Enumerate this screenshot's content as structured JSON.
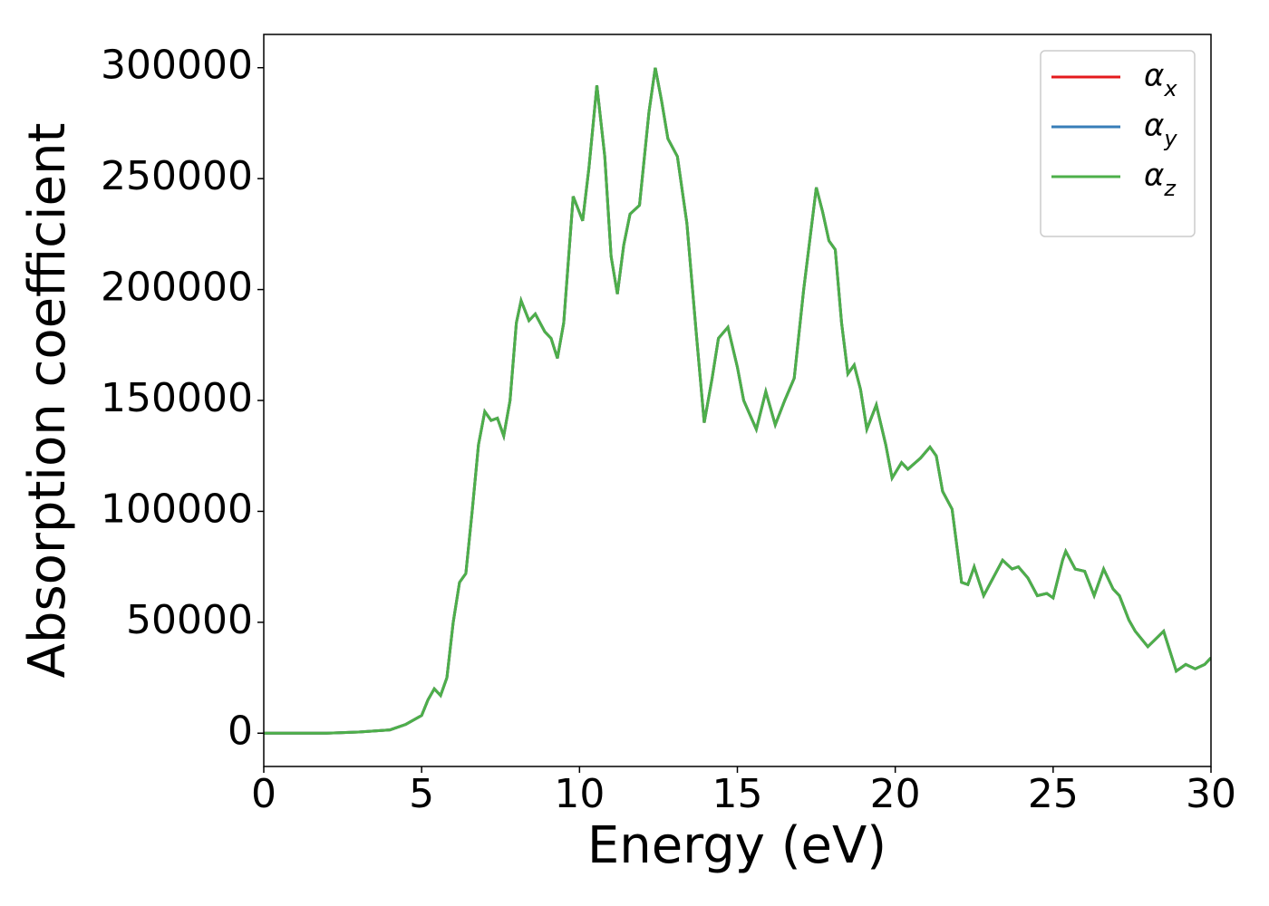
{
  "chart_data": {
    "type": "line",
    "xlabel": "Energy (eV)",
    "ylabel": "Absorption coefficient",
    "x": [
      0,
      2,
      3,
      4,
      4.5,
      5,
      5.2,
      5.4,
      5.6,
      5.8,
      6.0,
      6.2,
      6.4,
      6.6,
      6.8,
      7.0,
      7.2,
      7.4,
      7.6,
      7.8,
      8.0,
      8.15,
      8.4,
      8.6,
      8.9,
      9.1,
      9.3,
      9.5,
      9.8,
      10.1,
      10.3,
      10.55,
      10.8,
      11.0,
      11.2,
      11.4,
      11.6,
      11.9,
      12.2,
      12.4,
      12.6,
      12.8,
      13.1,
      13.4,
      13.7,
      13.95,
      14.2,
      14.4,
      14.7,
      15.0,
      15.2,
      15.6,
      15.9,
      16.2,
      16.5,
      16.8,
      17.1,
      17.5,
      17.7,
      17.9,
      18.1,
      18.3,
      18.5,
      18.7,
      18.9,
      19.1,
      19.4,
      19.7,
      19.9,
      20.2,
      20.4,
      20.8,
      21.1,
      21.3,
      21.5,
      21.8,
      22.1,
      22.3,
      22.5,
      22.8,
      23.1,
      23.4,
      23.7,
      23.9,
      24.2,
      24.5,
      24.8,
      25.0,
      25.3,
      25.4,
      25.7,
      26.0,
      26.3,
      26.6,
      26.9,
      27.1,
      27.4,
      27.6,
      28.0,
      28.5,
      28.9,
      29.2,
      29.5,
      29.8,
      30
    ],
    "series": [
      {
        "name": "α_x",
        "color": "#e41a1c",
        "values": [
          0,
          0,
          500,
          1500,
          4000,
          8000,
          15000,
          20000,
          17000,
          25000,
          50000,
          68000,
          72000,
          100000,
          130000,
          145000,
          141000,
          142000,
          134000,
          150000,
          185000,
          195000,
          186000,
          189000,
          181000,
          178000,
          169000,
          185000,
          242000,
          231000,
          255000,
          292000,
          260000,
          215000,
          198000,
          220000,
          234000,
          238000,
          280000,
          300000,
          285000,
          268000,
          260000,
          230000,
          180000,
          140000,
          160000,
          178000,
          183000,
          165000,
          150000,
          137000,
          154000,
          139000,
          150000,
          160000,
          200000,
          246000,
          235000,
          222000,
          218000,
          185000,
          162000,
          166000,
          155000,
          137000,
          148000,
          130000,
          115000,
          122000,
          119000,
          124000,
          129000,
          125000,
          109000,
          101000,
          68000,
          67000,
          75000,
          62000,
          70000,
          78000,
          74000,
          75000,
          70000,
          62000,
          63000,
          61000,
          78000,
          82000,
          74000,
          73000,
          62000,
          74000,
          65000,
          62000,
          51000,
          46000,
          39000,
          46000,
          28000,
          31000,
          29000,
          31000,
          34000
        ]
      },
      {
        "name": "α_y",
        "color": "#377eb8",
        "values": [
          0,
          0,
          500,
          1500,
          4000,
          8000,
          15000,
          20000,
          17000,
          25000,
          50000,
          68000,
          72000,
          100000,
          130000,
          145000,
          141000,
          142000,
          134000,
          150000,
          185000,
          195000,
          186000,
          189000,
          181000,
          178000,
          169000,
          185000,
          242000,
          231000,
          255000,
          292000,
          260000,
          215000,
          198000,
          220000,
          234000,
          238000,
          280000,
          300000,
          285000,
          268000,
          260000,
          230000,
          180000,
          140000,
          160000,
          178000,
          183000,
          165000,
          150000,
          137000,
          154000,
          139000,
          150000,
          160000,
          200000,
          246000,
          235000,
          222000,
          218000,
          185000,
          162000,
          166000,
          155000,
          137000,
          148000,
          130000,
          115000,
          122000,
          119000,
          124000,
          129000,
          125000,
          109000,
          101000,
          68000,
          67000,
          75000,
          62000,
          70000,
          78000,
          74000,
          75000,
          70000,
          62000,
          63000,
          61000,
          78000,
          82000,
          74000,
          73000,
          62000,
          74000,
          65000,
          62000,
          51000,
          46000,
          39000,
          46000,
          28000,
          31000,
          29000,
          31000,
          34000
        ]
      },
      {
        "name": "α_z",
        "color": "#4daf4a",
        "values": [
          0,
          0,
          500,
          1500,
          4000,
          8000,
          15000,
          20000,
          17000,
          25000,
          50000,
          68000,
          72000,
          100000,
          130000,
          145000,
          141000,
          142000,
          134000,
          150000,
          185000,
          195000,
          186000,
          189000,
          181000,
          178000,
          169000,
          185000,
          242000,
          231000,
          255000,
          292000,
          260000,
          215000,
          198000,
          220000,
          234000,
          238000,
          280000,
          300000,
          285000,
          268000,
          260000,
          230000,
          180000,
          140000,
          160000,
          178000,
          183000,
          165000,
          150000,
          137000,
          154000,
          139000,
          150000,
          160000,
          200000,
          246000,
          235000,
          222000,
          218000,
          185000,
          162000,
          166000,
          155000,
          137000,
          148000,
          130000,
          115000,
          122000,
          119000,
          124000,
          129000,
          125000,
          109000,
          101000,
          68000,
          67000,
          75000,
          62000,
          70000,
          78000,
          74000,
          75000,
          70000,
          62000,
          63000,
          61000,
          78000,
          82000,
          74000,
          73000,
          62000,
          74000,
          65000,
          62000,
          51000,
          46000,
          39000,
          46000,
          28000,
          31000,
          29000,
          31000,
          34000
        ]
      }
    ],
    "xlim": [
      0,
      30
    ],
    "xticks": [
      0,
      5,
      10,
      15,
      20,
      25,
      30
    ],
    "ylim": [
      -15000,
      315000
    ],
    "yticks": [
      0,
      50000,
      100000,
      150000,
      200000,
      250000,
      300000
    ],
    "legend": "upper right"
  }
}
